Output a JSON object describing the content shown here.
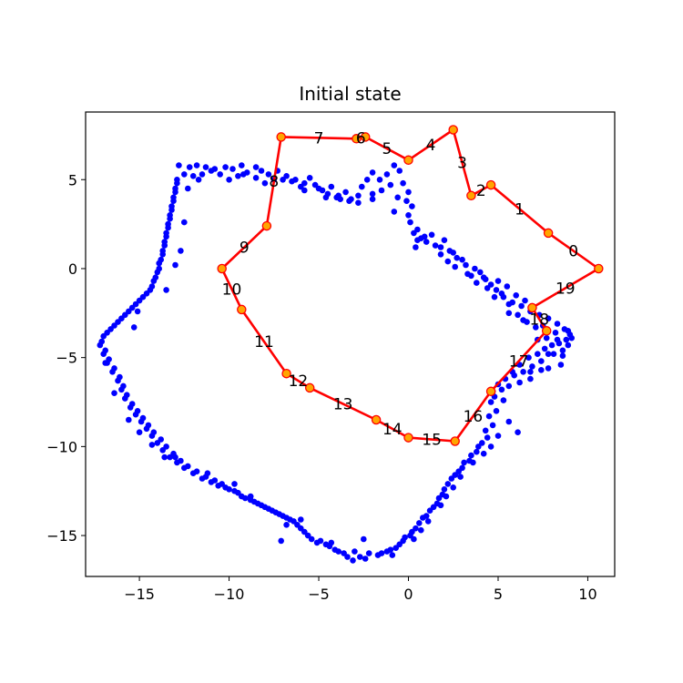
{
  "chart_data": {
    "type": "scatter",
    "title": "Initial state",
    "xlabel": "",
    "ylabel": "",
    "xlim": [
      -18.0,
      11.5
    ],
    "ylim": [
      -17.3,
      8.8
    ],
    "grid": false,
    "x_ticks": [
      -15,
      -10,
      -5,
      0,
      5,
      10
    ],
    "x_tick_labels": [
      "−15",
      "−10",
      "−5",
      "0",
      "5",
      "10"
    ],
    "y_ticks": [
      5,
      0,
      -5,
      -10,
      -15
    ],
    "y_tick_labels": [
      "5",
      "0",
      "−5",
      "−10",
      "−15"
    ],
    "colors": {
      "points": "#0000ff",
      "tour_line": "#ff0000",
      "node_fill": "#ffa500",
      "node_edge": "#ff0000",
      "axes": "#000000"
    },
    "point_series": [
      [
        -12.8,
        5.8
      ],
      [
        -12.2,
        5.7
      ],
      [
        -11.8,
        5.8
      ],
      [
        -11.3,
        5.7
      ],
      [
        -10.8,
        5.6
      ],
      [
        -10.2,
        5.7
      ],
      [
        -9.8,
        5.6
      ],
      [
        -9.3,
        5.8
      ],
      [
        -9.0,
        5.4
      ],
      [
        -8.5,
        5.7
      ],
      [
        -8.2,
        5.5
      ],
      [
        -7.8,
        5.3
      ],
      [
        -7.3,
        5.5
      ],
      [
        -6.8,
        5.2
      ],
      [
        -6.3,
        5.0
      ],
      [
        -5.8,
        4.8
      ],
      [
        -5.5,
        5.1
      ],
      [
        -5.2,
        4.7
      ],
      [
        -4.8,
        4.4
      ],
      [
        -4.3,
        4.6
      ],
      [
        -3.9,
        4.1
      ],
      [
        -3.5,
        4.3
      ],
      [
        -3.2,
        3.9
      ],
      [
        -2.8,
        4.1
      ],
      [
        -2.6,
        4.6
      ],
      [
        -2.3,
        5.0
      ],
      [
        -2.0,
        5.4
      ],
      [
        -1.6,
        5.0
      ],
      [
        -1.2,
        5.3
      ],
      [
        -0.8,
        5.8
      ],
      [
        -0.5,
        5.5
      ],
      [
        -0.3,
        4.8
      ],
      [
        0.0,
        4.3
      ],
      [
        0.2,
        3.5
      ],
      [
        0.1,
        2.6
      ],
      [
        0.3,
        2.0
      ],
      [
        0.5,
        1.6
      ],
      [
        0.9,
        1.8
      ],
      [
        1.3,
        1.9
      ],
      [
        1.8,
        1.2
      ],
      [
        2.3,
        1.0
      ],
      [
        2.7,
        0.6
      ],
      [
        3.2,
        0.2
      ],
      [
        3.7,
        0.0
      ],
      [
        4.0,
        -0.2
      ],
      [
        4.3,
        -0.6
      ],
      [
        4.6,
        -0.9
      ],
      [
        4.9,
        -1.2
      ],
      [
        5.3,
        -1.6
      ],
      [
        5.8,
        -1.9
      ],
      [
        6.3,
        -2.1
      ],
      [
        6.8,
        -2.4
      ],
      [
        7.3,
        -2.6
      ],
      [
        7.8,
        -2.8
      ],
      [
        8.3,
        -3.1
      ],
      [
        8.7,
        -3.4
      ],
      [
        9.0,
        -3.7
      ],
      [
        8.8,
        -4.0
      ],
      [
        8.4,
        -4.2
      ],
      [
        8.0,
        -4.3
      ],
      [
        7.6,
        -4.5
      ],
      [
        7.2,
        -4.8
      ],
      [
        6.7,
        -5.0
      ],
      [
        6.2,
        -5.4
      ],
      [
        5.8,
        -5.8
      ],
      [
        5.4,
        -6.2
      ],
      [
        5.0,
        -6.5
      ],
      [
        4.7,
        -6.9
      ],
      [
        4.6,
        -7.5
      ],
      [
        4.5,
        -8.3
      ],
      [
        4.3,
        -9.1
      ],
      [
        4.1,
        -9.8
      ],
      [
        3.8,
        -10.3
      ],
      [
        3.4,
        -10.8
      ],
      [
        3.0,
        -11.2
      ],
      [
        2.6,
        -11.6
      ],
      [
        2.2,
        -12.1
      ],
      [
        1.9,
        -12.7
      ],
      [
        1.6,
        -13.2
      ],
      [
        1.2,
        -13.6
      ],
      [
        0.8,
        -14.0
      ],
      [
        0.4,
        -14.6
      ],
      [
        0.1,
        -15.0
      ],
      [
        -0.3,
        -15.3
      ],
      [
        -0.7,
        -15.7
      ],
      [
        -1.2,
        -15.9
      ],
      [
        -1.7,
        -16.1
      ],
      [
        -2.2,
        -16.0
      ],
      [
        -2.7,
        -16.2
      ],
      [
        -3.1,
        -16.4
      ],
      [
        -3.6,
        -16.0
      ],
      [
        -4.1,
        -15.8
      ],
      [
        -4.6,
        -15.5
      ],
      [
        -5.1,
        -15.4
      ],
      [
        -5.6,
        -15.0
      ],
      [
        -6.0,
        -14.6
      ],
      [
        -6.4,
        -14.2
      ],
      [
        -6.8,
        -14.0
      ],
      [
        -7.2,
        -13.8
      ],
      [
        -7.6,
        -13.6
      ],
      [
        -8.0,
        -13.4
      ],
      [
        -8.4,
        -13.2
      ],
      [
        -8.8,
        -13.0
      ],
      [
        -9.3,
        -12.8
      ],
      [
        -9.7,
        -12.5
      ],
      [
        -10.2,
        -12.3
      ],
      [
        -10.6,
        -12.2
      ],
      [
        -11.0,
        -12.0
      ],
      [
        -11.5,
        -11.8
      ],
      [
        -12.0,
        -11.5
      ],
      [
        -12.5,
        -11.2
      ],
      [
        -12.9,
        -10.9
      ],
      [
        -13.3,
        -10.6
      ],
      [
        -13.7,
        -10.2
      ],
      [
        -14.0,
        -9.8
      ],
      [
        -14.3,
        -9.4
      ],
      [
        -14.6,
        -9.0
      ],
      [
        -14.9,
        -8.6
      ],
      [
        -15.2,
        -8.2
      ],
      [
        -15.5,
        -7.8
      ],
      [
        -15.8,
        -7.3
      ],
      [
        -16.0,
        -6.8
      ],
      [
        -16.2,
        -6.3
      ],
      [
        -16.5,
        -5.8
      ],
      [
        -16.8,
        -5.3
      ],
      [
        -17.0,
        -4.8
      ],
      [
        -17.2,
        -4.3
      ],
      [
        -17.0,
        -3.8
      ],
      [
        -16.6,
        -3.4
      ],
      [
        -16.2,
        -3.0
      ],
      [
        -15.8,
        -2.6
      ],
      [
        -15.4,
        -2.2
      ],
      [
        -15.0,
        -1.8
      ],
      [
        -14.6,
        -1.4
      ],
      [
        -14.3,
        -1.0
      ],
      [
        -14.1,
        -0.5
      ],
      [
        -13.9,
        0.0
      ],
      [
        -13.8,
        0.5
      ],
      [
        -13.7,
        1.0
      ],
      [
        -13.6,
        1.5
      ],
      [
        -13.5,
        2.0
      ],
      [
        -13.4,
        2.5
      ],
      [
        -13.3,
        3.0
      ],
      [
        -13.2,
        3.5
      ],
      [
        -13.1,
        4.0
      ],
      [
        -13.0,
        4.5
      ],
      [
        -12.9,
        5.0
      ],
      [
        -12.5,
        5.3
      ],
      [
        -12.0,
        5.2
      ],
      [
        -11.5,
        5.3
      ],
      [
        -10.5,
        5.3
      ],
      [
        -9.5,
        5.2
      ],
      [
        -8.5,
        5.1
      ],
      [
        -7.5,
        5.0
      ],
      [
        -6.5,
        4.9
      ],
      [
        -5.0,
        4.5
      ],
      [
        -4.5,
        4.2
      ],
      [
        -3.8,
        3.9
      ],
      [
        -1.5,
        4.4
      ],
      [
        -0.6,
        4.0
      ],
      [
        0.5,
        2.2
      ],
      [
        1.0,
        1.5
      ],
      [
        2.0,
        1.6
      ],
      [
        2.5,
        0.9
      ],
      [
        3.0,
        0.5
      ],
      [
        3.5,
        -0.4
      ],
      [
        4.2,
        -0.5
      ],
      [
        5.0,
        -0.7
      ],
      [
        5.5,
        -1.0
      ],
      [
        6.0,
        -1.5
      ],
      [
        6.5,
        -1.8
      ],
      [
        7.0,
        -2.2
      ],
      [
        7.5,
        -3.2
      ],
      [
        8.2,
        -3.6
      ],
      [
        8.9,
        -3.5
      ],
      [
        9.1,
        -3.9
      ],
      [
        8.6,
        -4.6
      ],
      [
        8.1,
        -4.8
      ],
      [
        7.4,
        -5.2
      ],
      [
        6.9,
        -5.5
      ],
      [
        6.4,
        -5.8
      ],
      [
        5.9,
        -6.0
      ],
      [
        5.2,
        -6.8
      ],
      [
        4.8,
        -7.2
      ],
      [
        4.9,
        -8.0
      ],
      [
        4.7,
        -8.8
      ],
      [
        4.4,
        -9.5
      ],
      [
        3.9,
        -10.0
      ],
      [
        3.5,
        -10.5
      ],
      [
        3.1,
        -10.9
      ],
      [
        2.8,
        -11.4
      ],
      [
        2.4,
        -11.8
      ],
      [
        2.0,
        -12.4
      ],
      [
        1.7,
        -12.9
      ],
      [
        1.4,
        -13.4
      ],
      [
        1.0,
        -13.9
      ],
      [
        0.6,
        -14.3
      ],
      [
        0.2,
        -14.8
      ],
      [
        -0.2,
        -15.1
      ],
      [
        -0.5,
        -15.5
      ],
      [
        -1.0,
        -15.8
      ],
      [
        -1.5,
        -16.0
      ],
      [
        -2.4,
        -16.3
      ],
      [
        -3.4,
        -16.2
      ],
      [
        -3.9,
        -15.9
      ],
      [
        -4.4,
        -15.6
      ],
      [
        -4.9,
        -15.3
      ],
      [
        -5.4,
        -15.2
      ],
      [
        -5.8,
        -14.8
      ],
      [
        -6.2,
        -14.4
      ],
      [
        -6.6,
        -14.1
      ],
      [
        -7.0,
        -13.9
      ],
      [
        -7.4,
        -13.7
      ],
      [
        -7.8,
        -13.5
      ],
      [
        -8.2,
        -13.3
      ],
      [
        -8.6,
        -13.1
      ],
      [
        -9.1,
        -12.9
      ],
      [
        -9.5,
        -12.6
      ],
      [
        -10.0,
        -12.4
      ],
      [
        -10.4,
        -12.1
      ],
      [
        -10.8,
        -11.9
      ],
      [
        -11.3,
        -11.7
      ],
      [
        -11.8,
        -11.4
      ],
      [
        -12.3,
        -11.1
      ],
      [
        -12.7,
        -10.8
      ],
      [
        -13.1,
        -10.4
      ],
      [
        -13.5,
        -10.0
      ],
      [
        -13.8,
        -9.6
      ],
      [
        -14.2,
        -9.2
      ],
      [
        -14.5,
        -8.8
      ],
      [
        -14.8,
        -8.4
      ],
      [
        -15.1,
        -8.0
      ],
      [
        -15.4,
        -7.6
      ],
      [
        -15.7,
        -7.1
      ],
      [
        -15.9,
        -6.6
      ],
      [
        -16.1,
        -6.1
      ],
      [
        -16.4,
        -5.6
      ],
      [
        -16.7,
        -5.1
      ],
      [
        -16.9,
        -4.6
      ],
      [
        -17.1,
        -4.1
      ],
      [
        -16.8,
        -3.6
      ],
      [
        -16.4,
        -3.2
      ],
      [
        -16.0,
        -2.8
      ],
      [
        -15.6,
        -2.4
      ],
      [
        -15.2,
        -2.0
      ],
      [
        -14.8,
        -1.6
      ],
      [
        -14.4,
        -1.2
      ],
      [
        -14.2,
        -0.7
      ],
      [
        -14.0,
        -0.2
      ],
      [
        -13.9,
        0.3
      ],
      [
        -13.7,
        0.8
      ],
      [
        -13.6,
        1.3
      ],
      [
        -13.5,
        1.8
      ],
      [
        -13.4,
        2.3
      ],
      [
        -13.3,
        2.8
      ],
      [
        -13.2,
        3.3
      ],
      [
        -13.1,
        3.8
      ],
      [
        -13.0,
        4.3
      ],
      [
        -12.9,
        4.8
      ],
      [
        -10.0,
        5.0
      ],
      [
        -6.0,
        4.6
      ],
      [
        -4.0,
        4.0
      ],
      [
        -3.3,
        3.8
      ],
      [
        -2.0,
        4.2
      ],
      [
        -1.0,
        4.7
      ],
      [
        -0.1,
        3.8
      ],
      [
        0.4,
        1.2
      ],
      [
        1.5,
        1.3
      ],
      [
        2.2,
        0.4
      ],
      [
        3.8,
        -0.8
      ],
      [
        4.4,
        -1.1
      ],
      [
        5.2,
        -1.4
      ],
      [
        5.6,
        -2.0
      ],
      [
        6.1,
        -2.6
      ],
      [
        6.6,
        -3.0
      ],
      [
        7.1,
        -3.3
      ],
      [
        7.7,
        -3.9
      ],
      [
        8.3,
        -4.0
      ],
      [
        8.9,
        -4.3
      ],
      [
        8.5,
        -5.4
      ],
      [
        7.8,
        -5.6
      ],
      [
        6.8,
        -6.2
      ],
      [
        6.2,
        -6.4
      ],
      [
        5.6,
        -6.6
      ],
      [
        5.3,
        -7.4
      ],
      [
        5.6,
        -8.6
      ],
      [
        6.1,
        -9.2
      ],
      [
        5.0,
        -9.4
      ],
      [
        4.6,
        -10.0
      ],
      [
        4.2,
        -10.4
      ],
      [
        3.6,
        -10.9
      ],
      [
        2.9,
        -11.7
      ],
      [
        2.5,
        -12.3
      ],
      [
        2.1,
        -12.8
      ],
      [
        1.8,
        -13.3
      ],
      [
        1.1,
        -14.2
      ],
      [
        0.7,
        -14.7
      ],
      [
        0.3,
        -15.2
      ],
      [
        -0.9,
        -16.1
      ],
      [
        -2.5,
        -15.2
      ],
      [
        -3.0,
        -15.9
      ],
      [
        -4.3,
        -15.4
      ],
      [
        -6.0,
        -14.1
      ],
      [
        -6.8,
        -14.4
      ],
      [
        -7.1,
        -15.3
      ],
      [
        -8.8,
        -12.8
      ],
      [
        -9.7,
        -12.1
      ],
      [
        -11.2,
        -11.5
      ],
      [
        -13.0,
        -10.6
      ],
      [
        -13.6,
        -10.6
      ],
      [
        -14.3,
        -9.9
      ],
      [
        -15.0,
        -9.2
      ],
      [
        -15.6,
        -8.5
      ],
      [
        -16.4,
        -7.0
      ],
      [
        -16.9,
        -5.3
      ],
      [
        -15.3,
        -3.3
      ],
      [
        -15.1,
        -2.4
      ],
      [
        -13.5,
        -1.2
      ],
      [
        -13.0,
        0.2
      ],
      [
        -12.7,
        1.0
      ],
      [
        -12.5,
        2.6
      ],
      [
        -12.3,
        4.5
      ],
      [
        -11.7,
        5.0
      ],
      [
        -11.0,
        5.5
      ],
      [
        -9.2,
        5.3
      ],
      [
        -8.0,
        4.8
      ],
      [
        -7.0,
        5.0
      ],
      [
        -5.8,
        4.4
      ],
      [
        -4.6,
        4.0
      ],
      [
        -2.8,
        3.7
      ],
      [
        -2.0,
        3.9
      ],
      [
        -0.8,
        3.2
      ],
      [
        0.0,
        3.0
      ],
      [
        0.7,
        1.7
      ],
      [
        1.8,
        0.8
      ],
      [
        2.6,
        0.1
      ],
      [
        3.3,
        -0.3
      ],
      [
        4.8,
        -1.6
      ],
      [
        5.6,
        -2.5
      ],
      [
        6.4,
        -2.9
      ],
      [
        7.2,
        -4.0
      ],
      [
        7.8,
        -4.8
      ],
      [
        7.4,
        -5.7
      ],
      [
        8.6,
        -4.9
      ],
      [
        6.8,
        -5.8
      ]
    ],
    "tour_nodes": [
      {
        "label": "0",
        "x": 10.6,
        "y": 0.0
      },
      {
        "label": "1",
        "x": 7.8,
        "y": 2.0
      },
      {
        "label": "2",
        "x": 4.6,
        "y": 4.7
      },
      {
        "label": "3",
        "x": 3.5,
        "y": 4.1
      },
      {
        "label": "4",
        "x": 2.5,
        "y": 7.8
      },
      {
        "label": "5",
        "x": 0.0,
        "y": 6.1
      },
      {
        "label": "6",
        "x": -2.4,
        "y": 7.4
      },
      {
        "label": "7",
        "x": -2.9,
        "y": 7.3
      },
      {
        "label": "8",
        "x": -7.1,
        "y": 7.4
      },
      {
        "label": "9",
        "x": -7.9,
        "y": 2.4
      },
      {
        "label": "10",
        "x": -10.4,
        "y": 0.0
      },
      {
        "label": "11",
        "x": -9.3,
        "y": -2.3
      },
      {
        "label": "12",
        "x": -6.8,
        "y": -5.9
      },
      {
        "label": "13",
        "x": -5.5,
        "y": -6.7
      },
      {
        "label": "14",
        "x": -1.8,
        "y": -8.5
      },
      {
        "label": "15",
        "x": 0.0,
        "y": -9.5
      },
      {
        "label": "16",
        "x": 2.6,
        "y": -9.7
      },
      {
        "label": "17",
        "x": 4.6,
        "y": -6.9
      },
      {
        "label": "18",
        "x": 7.7,
        "y": -3.5
      },
      {
        "label": "19",
        "x": 6.9,
        "y": -2.2
      }
    ]
  }
}
